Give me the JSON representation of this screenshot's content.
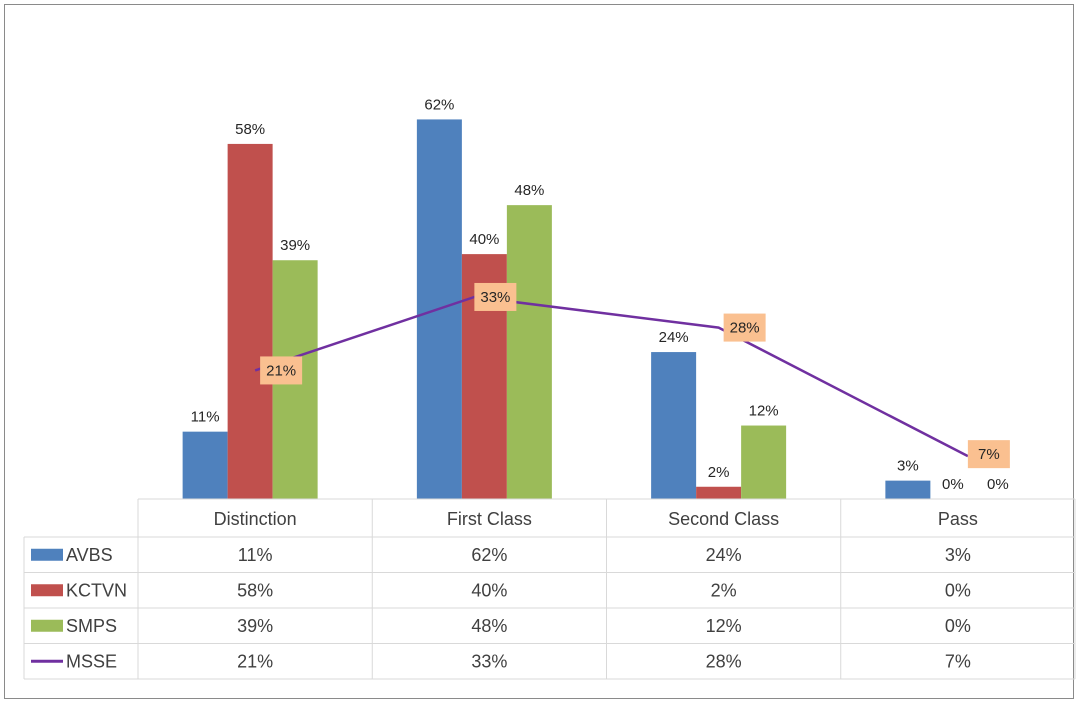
{
  "chart_data": {
    "type": "bar",
    "categories": [
      "Distinction",
      "First Class",
      "Second Class",
      "Pass"
    ],
    "series": [
      {
        "name": "AVBS",
        "type": "bar",
        "color": "#4f81bd",
        "values": [
          11,
          62,
          24,
          3
        ],
        "labels": [
          "11%",
          "62%",
          "24%",
          "3%"
        ]
      },
      {
        "name": "KCTVN",
        "type": "bar",
        "color": "#c0504d",
        "values": [
          58,
          40,
          2,
          0
        ],
        "labels": [
          "58%",
          "40%",
          "2%",
          "0%"
        ]
      },
      {
        "name": "SMPS",
        "type": "bar",
        "color": "#9bbb59",
        "values": [
          39,
          48,
          12,
          0
        ],
        "labels": [
          "39%",
          "48%",
          "12%",
          "0%"
        ]
      },
      {
        "name": "MSSE",
        "type": "line",
        "color": "#7030a0",
        "values": [
          21,
          33,
          28,
          7
        ],
        "labels": [
          "21%",
          "33%",
          "28%",
          "7%"
        ]
      }
    ],
    "ylim": [
      0,
      65
    ],
    "unit": "%",
    "grid": false,
    "legend": "data-table",
    "label_box_color": "#fac090"
  }
}
